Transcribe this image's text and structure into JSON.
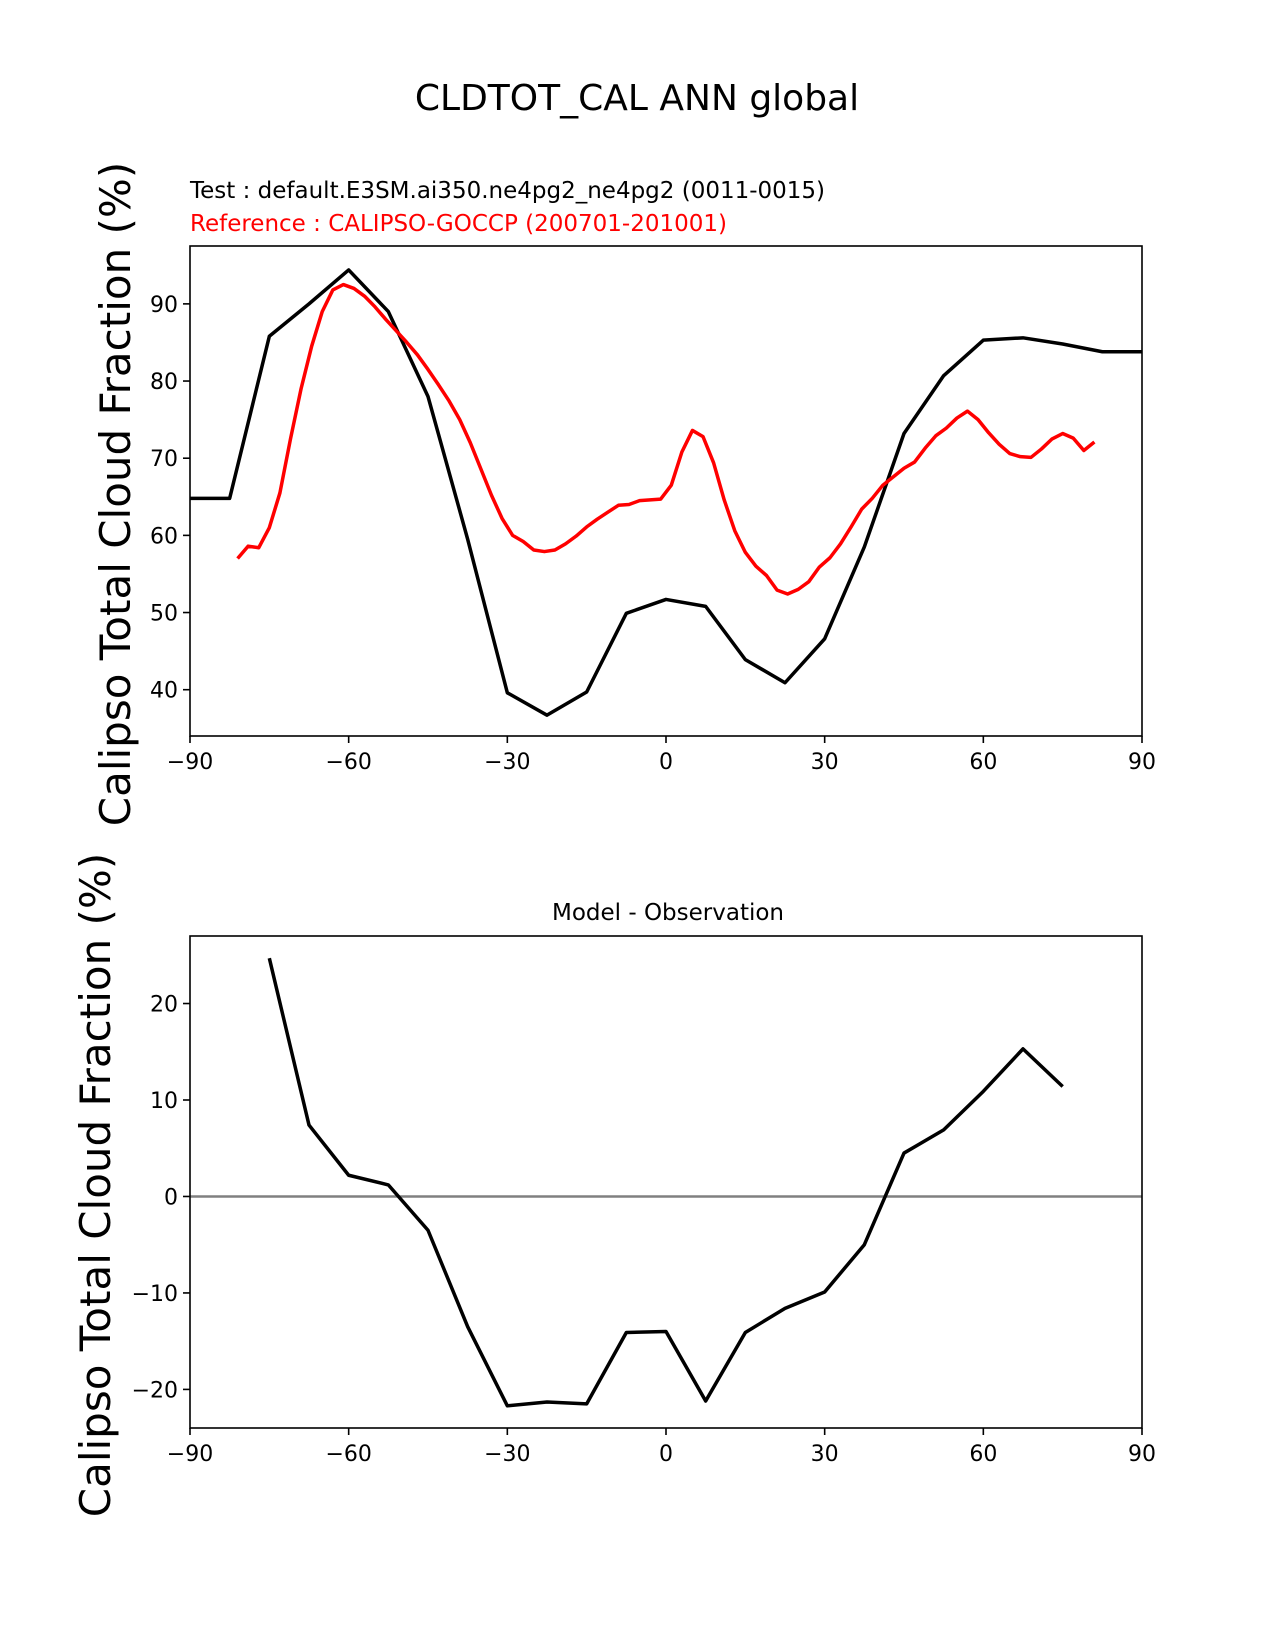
{
  "figure": {
    "title": "CLDTOT_CAL ANN global"
  },
  "chart_data": [
    {
      "type": "line",
      "subtitle_test": "Test : default.E3SM.ai350.ne4pg2_ne4pg2 (0011-0015)",
      "subtitle_reference": "Reference : CALIPSO-GOCCP (200701-201001)",
      "ylabel": "Calipso Total Cloud Fraction (%)",
      "xlabel": "",
      "xlim": [
        -90,
        90
      ],
      "ylim": [
        34,
        97.5
      ],
      "xticks": [
        -90,
        -60,
        -30,
        0,
        30,
        60,
        90
      ],
      "xtick_labels": [
        "−90",
        "−60",
        "−30",
        "0",
        "30",
        "60",
        "90"
      ],
      "yticks": [
        40,
        50,
        60,
        70,
        80,
        90
      ],
      "ytick_labels": [
        "40",
        "50",
        "60",
        "70",
        "80",
        "90"
      ],
      "series": [
        {
          "name": "Test",
          "color": "#000000",
          "x": [
            -90,
            -82.5,
            -75,
            -67.5,
            -60,
            -52.5,
            -45,
            -37.5,
            -30,
            -22.5,
            -15,
            -7.5,
            0,
            7.5,
            15,
            22.5,
            30,
            37.5,
            45,
            52.5,
            60,
            67.5,
            75,
            82.5,
            90
          ],
          "y": [
            64.8,
            64.8,
            85.8,
            90,
            94.4,
            89,
            78,
            59.5,
            39.6,
            36.7,
            39.7,
            49.9,
            51.7,
            50.8,
            43.9,
            40.9,
            46.6,
            58.5,
            73.2,
            80.7,
            85.3,
            85.6,
            84.8,
            83.8,
            83.8
          ]
        },
        {
          "name": "Reference",
          "color": "#ff0000",
          "x": [
            -81,
            -79,
            -77,
            -75,
            -73,
            -71,
            -69,
            -67,
            -65,
            -63,
            -61,
            -59,
            -57,
            -55,
            -53,
            -51,
            -49,
            -47,
            -45,
            -43,
            -41,
            -39,
            -37,
            -35,
            -33,
            -31,
            -29,
            -27,
            -25,
            -23,
            -21,
            -19,
            -17,
            -15,
            -13,
            -11,
            -9,
            -7,
            -5,
            -3,
            -1,
            1,
            3,
            5,
            7,
            9,
            11,
            13,
            15,
            17,
            19,
            21,
            23,
            25,
            27,
            29,
            31,
            33,
            35,
            37,
            39,
            41,
            43,
            45,
            47,
            49,
            51,
            53,
            55,
            57,
            59,
            61,
            63,
            65,
            67,
            69,
            71,
            73,
            75,
            77,
            79,
            81
          ],
          "y": [
            57,
            58.6,
            58.4,
            61,
            65.5,
            72.5,
            79,
            84.5,
            89,
            91.8,
            92.5,
            92,
            91,
            89.6,
            88,
            86.5,
            85,
            83.4,
            81.5,
            79.5,
            77.4,
            75,
            72,
            68.6,
            65.2,
            62.2,
            60,
            59.2,
            58.1,
            57.9,
            58.1,
            58.9,
            59.9,
            61.1,
            62.1,
            63,
            63.9,
            64,
            64.5,
            64.6,
            64.7,
            66.5,
            70.8,
            73.6,
            72.8,
            69.4,
            64.6,
            60.6,
            57.8,
            56,
            54.8,
            52.9,
            52.4,
            53,
            54,
            55.9,
            57.1,
            58.9,
            61.1,
            63.4,
            64.8,
            66.5,
            67.6,
            68.7,
            69.5,
            71.3,
            72.9,
            73.9,
            75.2,
            76.1,
            75,
            73.3,
            71.8,
            70.6,
            70.2,
            70.1,
            71.2,
            72.5,
            73.2,
            72.6,
            71,
            72.1
          ]
        }
      ]
    },
    {
      "type": "line",
      "title": "Model - Observation",
      "ylabel": "Calipso Total Cloud Fraction (%)",
      "xlabel": "",
      "xlim": [
        -90,
        90
      ],
      "ylim": [
        -24,
        27
      ],
      "xticks": [
        -90,
        -60,
        -30,
        0,
        30,
        60,
        90
      ],
      "xtick_labels": [
        "−90",
        "−60",
        "−30",
        "0",
        "30",
        "60",
        "90"
      ],
      "yticks": [
        -20,
        -10,
        0,
        10,
        20
      ],
      "ytick_labels": [
        "−20",
        "−10",
        "0",
        "10",
        "20"
      ],
      "zero_line_color": "#808080",
      "series": [
        {
          "name": "Model - Observation",
          "color": "#000000",
          "x": [
            -75,
            -67.5,
            -60,
            -52.5,
            -45,
            -37.5,
            -30,
            -22.5,
            -15,
            -7.5,
            0,
            7.5,
            15,
            22.5,
            30,
            37.5,
            45,
            52.5,
            60,
            67.5,
            75
          ],
          "y": [
            24.7,
            7.4,
            2.2,
            1.2,
            -3.5,
            -13.5,
            -21.7,
            -21.3,
            -21.5,
            -14.1,
            -14,
            -21.2,
            -14.1,
            -11.6,
            -9.9,
            -5,
            4.5,
            6.9,
            10.9,
            15.3,
            11.4
          ]
        }
      ]
    }
  ]
}
